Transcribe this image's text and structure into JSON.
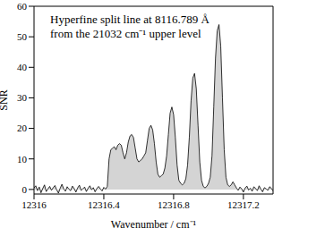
{
  "chart_data": {
    "type": "area",
    "annotation": [
      "Hyperfine split line at 8116.789 Å",
      "from the 21032 cm⁻¹ upper level"
    ],
    "x_label": "Wavenumber / cm⁻¹",
    "y_label": "SNR",
    "xlim": [
      12316,
      12317.37
    ],
    "xticks": [
      12316,
      12316.4,
      12316.8,
      12317.2
    ],
    "ylim": [
      -1.5,
      60
    ],
    "yticks": [
      0,
      10,
      20,
      30,
      40,
      50,
      60
    ],
    "grid": false,
    "color": "#000000",
    "x": [
      12316.0,
      12316.01,
      12316.02,
      12316.03,
      12316.04,
      12316.05,
      12316.06,
      12316.07,
      12316.08,
      12316.09,
      12316.1,
      12316.11,
      12316.12,
      12316.13,
      12316.14,
      12316.15,
      12316.16,
      12316.17,
      12316.18,
      12316.19,
      12316.2,
      12316.21,
      12316.22,
      12316.23,
      12316.24,
      12316.25,
      12316.26,
      12316.27,
      12316.28,
      12316.29,
      12316.3,
      12316.31,
      12316.32,
      12316.33,
      12316.34,
      12316.35,
      12316.36,
      12316.37,
      12316.38,
      12316.39,
      12316.4,
      12316.41,
      12316.42,
      12316.43,
      12316.44,
      12316.45,
      12316.46,
      12316.47,
      12316.48,
      12316.49,
      12316.5,
      12316.51,
      12316.52,
      12316.53,
      12316.54,
      12316.55,
      12316.56,
      12316.57,
      12316.58,
      12316.59,
      12316.6,
      12316.61,
      12316.62,
      12316.63,
      12316.64,
      12316.65,
      12316.66,
      12316.67,
      12316.68,
      12316.69,
      12316.7,
      12316.71,
      12316.72,
      12316.73,
      12316.74,
      12316.75,
      12316.76,
      12316.77,
      12316.78,
      12316.79,
      12316.8,
      12316.81,
      12316.82,
      12316.83,
      12316.84,
      12316.85,
      12316.86,
      12316.87,
      12316.88,
      12316.89,
      12316.9,
      12316.91,
      12316.92,
      12316.93,
      12316.94,
      12316.95,
      12316.96,
      12316.97,
      12316.98,
      12316.99,
      12317.0,
      12317.01,
      12317.02,
      12317.03,
      12317.04,
      12317.05,
      12317.06,
      12317.07,
      12317.08,
      12317.09,
      12317.1,
      12317.11,
      12317.12,
      12317.13,
      12317.14,
      12317.15,
      12317.16,
      12317.17,
      12317.18,
      12317.19,
      12317.2,
      12317.21,
      12317.22,
      12317.23,
      12317.24,
      12317.25,
      12317.26,
      12317.27,
      12317.28,
      12317.29,
      12317.3,
      12317.31,
      12317.32,
      12317.33,
      12317.34,
      12317.35,
      12317.36,
      12317.37
    ],
    "values": [
      0.5,
      1.2,
      -0.4,
      0.8,
      -1.1,
      0.3,
      1.5,
      -0.7,
      0.2,
      1.0,
      -0.3,
      0.6,
      1.3,
      -0.2,
      -1.2,
      0.4,
      1.7,
      0.2,
      -0.6,
      0.9,
      0.1,
      -0.4,
      1.1,
      0.3,
      -0.9,
      0.5,
      1.4,
      -0.3,
      0.2,
      0.8,
      -0.7,
      0.4,
      1.2,
      -0.1,
      0.6,
      -0.8,
      0.3,
      1.0,
      0.2,
      -0.5,
      0.7,
      0.1,
      1,
      10,
      13,
      13.5,
      14,
      13,
      14.5,
      15,
      14.5,
      12,
      10,
      12,
      15.5,
      17.5,
      18,
      17,
      13.5,
      10,
      9,
      9.5,
      10,
      11,
      12,
      16,
      20,
      21,
      19.5,
      15,
      9,
      5,
      4,
      4.5,
      5,
      7,
      11,
      18,
      25,
      27,
      24.5,
      17,
      8,
      3,
      2,
      1.5,
      2,
      3.5,
      8,
      17,
      29,
      36.5,
      38,
      33,
      21,
      9,
      3,
      1,
      0.5,
      1,
      2,
      4,
      11,
      27,
      43,
      52,
      54,
      47,
      30,
      13,
      4,
      1.5,
      1,
      1.5,
      2.5,
      1.5,
      0.5,
      -0.3,
      0.8,
      0.2,
      -0.9,
      0.5,
      1.1,
      -0.2,
      0.4,
      -0.6,
      0.9,
      0.3,
      -0.4,
      1.2,
      0.1,
      -0.8,
      0.6,
      0.2,
      -0.3,
      0.9,
      0.4,
      -0.5
    ]
  }
}
